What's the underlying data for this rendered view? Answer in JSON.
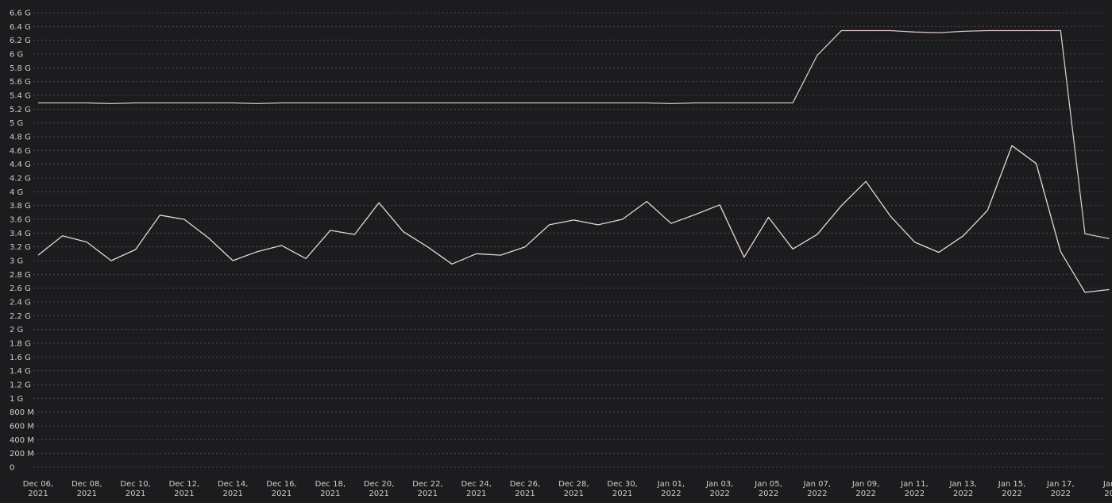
{
  "chart_data": {
    "type": "line",
    "background": "#1c1b1d",
    "line_colors": [
      "#d9c4c8",
      "#e6d6d9"
    ],
    "grid": true,
    "ylim": [
      0,
      6.6
    ],
    "yticks": [
      {
        "value": 6.6,
        "label": "6.6 G"
      },
      {
        "value": 6.4,
        "label": "6.4 G"
      },
      {
        "value": 6.2,
        "label": "6.2 G"
      },
      {
        "value": 6.0,
        "label": "6 G"
      },
      {
        "value": 5.8,
        "label": "5.8 G"
      },
      {
        "value": 5.6,
        "label": "5.6 G"
      },
      {
        "value": 5.4,
        "label": "5.4 G"
      },
      {
        "value": 5.2,
        "label": "5.2 G"
      },
      {
        "value": 5.0,
        "label": "5 G"
      },
      {
        "value": 4.8,
        "label": "4.8 G"
      },
      {
        "value": 4.6,
        "label": "4.6 G"
      },
      {
        "value": 4.4,
        "label": "4.4 G"
      },
      {
        "value": 4.2,
        "label": "4.2 G"
      },
      {
        "value": 4.0,
        "label": "4 G"
      },
      {
        "value": 3.8,
        "label": "3.8 G"
      },
      {
        "value": 3.6,
        "label": "3.6 G"
      },
      {
        "value": 3.4,
        "label": "3.4 G"
      },
      {
        "value": 3.2,
        "label": "3.2 G"
      },
      {
        "value": 3.0,
        "label": "3 G"
      },
      {
        "value": 2.8,
        "label": "2.8 G"
      },
      {
        "value": 2.6,
        "label": "2.6 G"
      },
      {
        "value": 2.4,
        "label": "2.4 G"
      },
      {
        "value": 2.2,
        "label": "2.2 G"
      },
      {
        "value": 2.0,
        "label": "2 G"
      },
      {
        "value": 1.8,
        "label": "1.8 G"
      },
      {
        "value": 1.6,
        "label": "1.6 G"
      },
      {
        "value": 1.4,
        "label": "1.4 G"
      },
      {
        "value": 1.2,
        "label": "1.2 G"
      },
      {
        "value": 1.0,
        "label": "1 G"
      },
      {
        "value": 0.8,
        "label": "800 M"
      },
      {
        "value": 0.6,
        "label": "600 M"
      },
      {
        "value": 0.4,
        "label": "400 M"
      },
      {
        "value": 0.2,
        "label": "200 M"
      },
      {
        "value": 0.0,
        "label": "0"
      }
    ],
    "xticks": [
      {
        "date": "2021-12-06",
        "line1": "Dec 06,",
        "line2": "2021"
      },
      {
        "date": "2021-12-08",
        "line1": "Dec 08,",
        "line2": "2021"
      },
      {
        "date": "2021-12-10",
        "line1": "Dec 10,",
        "line2": "2021"
      },
      {
        "date": "2021-12-12",
        "line1": "Dec 12,",
        "line2": "2021"
      },
      {
        "date": "2021-12-14",
        "line1": "Dec 14,",
        "line2": "2021"
      },
      {
        "date": "2021-12-16",
        "line1": "Dec 16,",
        "line2": "2021"
      },
      {
        "date": "2021-12-18",
        "line1": "Dec 18,",
        "line2": "2021"
      },
      {
        "date": "2021-12-20",
        "line1": "Dec 20,",
        "line2": "2021"
      },
      {
        "date": "2021-12-22",
        "line1": "Dec 22,",
        "line2": "2021"
      },
      {
        "date": "2021-12-24",
        "line1": "Dec 24,",
        "line2": "2021"
      },
      {
        "date": "2021-12-26",
        "line1": "Dec 26,",
        "line2": "2021"
      },
      {
        "date": "2021-12-28",
        "line1": "Dec 28,",
        "line2": "2021"
      },
      {
        "date": "2021-12-30",
        "line1": "Dec 30,",
        "line2": "2021"
      },
      {
        "date": "2022-01-01",
        "line1": "Jan 01,",
        "line2": "2022"
      },
      {
        "date": "2022-01-03",
        "line1": "Jan 03,",
        "line2": "2022"
      },
      {
        "date": "2022-01-05",
        "line1": "Jan 05,",
        "line2": "2022"
      },
      {
        "date": "2022-01-07",
        "line1": "Jan 07,",
        "line2": "2022"
      },
      {
        "date": "2022-01-09",
        "line1": "Jan 09,",
        "line2": "2022"
      },
      {
        "date": "2022-01-11",
        "line1": "Jan 11,",
        "line2": "2022"
      },
      {
        "date": "2022-01-13",
        "line1": "Jan 13,",
        "line2": "2022"
      },
      {
        "date": "2022-01-15",
        "line1": "Jan 15,",
        "line2": "2022"
      },
      {
        "date": "2022-01-17",
        "line1": "Jan 17,",
        "line2": "2022"
      },
      {
        "date": "2022-01-19",
        "line1": "Jan",
        "line2": "20"
      }
    ],
    "x": [
      "2021-12-06",
      "2021-12-07",
      "2021-12-08",
      "2021-12-09",
      "2021-12-10",
      "2021-12-11",
      "2021-12-12",
      "2021-12-13",
      "2021-12-14",
      "2021-12-15",
      "2021-12-16",
      "2021-12-17",
      "2021-12-18",
      "2021-12-19",
      "2021-12-20",
      "2021-12-21",
      "2021-12-22",
      "2021-12-23",
      "2021-12-24",
      "2021-12-25",
      "2021-12-26",
      "2021-12-27",
      "2021-12-28",
      "2021-12-29",
      "2021-12-30",
      "2021-12-31",
      "2022-01-01",
      "2022-01-02",
      "2022-01-03",
      "2022-01-04",
      "2022-01-05",
      "2022-01-06",
      "2022-01-07",
      "2022-01-08",
      "2022-01-09",
      "2022-01-10",
      "2022-01-11",
      "2022-01-12",
      "2022-01-13",
      "2022-01-14",
      "2022-01-15",
      "2022-01-16",
      "2022-01-17",
      "2022-01-18",
      "2022-01-19"
    ],
    "series": [
      {
        "values": [
          5.29,
          5.29,
          5.29,
          5.28,
          5.29,
          5.29,
          5.29,
          5.29,
          5.29,
          5.28,
          5.29,
          5.29,
          5.29,
          5.29,
          5.29,
          5.29,
          5.29,
          5.29,
          5.29,
          5.29,
          5.29,
          5.29,
          5.29,
          5.29,
          5.29,
          5.29,
          5.28,
          5.29,
          5.29,
          5.29,
          5.29,
          5.29,
          5.98,
          6.34,
          6.34,
          6.34,
          6.32,
          6.31,
          6.33,
          6.34,
          6.34,
          6.34,
          6.34,
          3.39,
          3.32
        ]
      },
      {
        "values": [
          3.08,
          3.36,
          3.27,
          3.0,
          3.16,
          3.66,
          3.6,
          3.33,
          3.0,
          3.13,
          3.22,
          3.03,
          3.44,
          3.38,
          3.84,
          3.42,
          3.2,
          2.95,
          3.1,
          3.08,
          3.2,
          3.52,
          3.59,
          3.52,
          3.6,
          3.86,
          3.54,
          3.67,
          3.81,
          3.05,
          3.63,
          3.17,
          3.38,
          3.8,
          4.15,
          3.65,
          3.27,
          3.12,
          3.36,
          3.73,
          4.67,
          4.41,
          3.13,
          2.54,
          2.58
        ]
      }
    ]
  }
}
